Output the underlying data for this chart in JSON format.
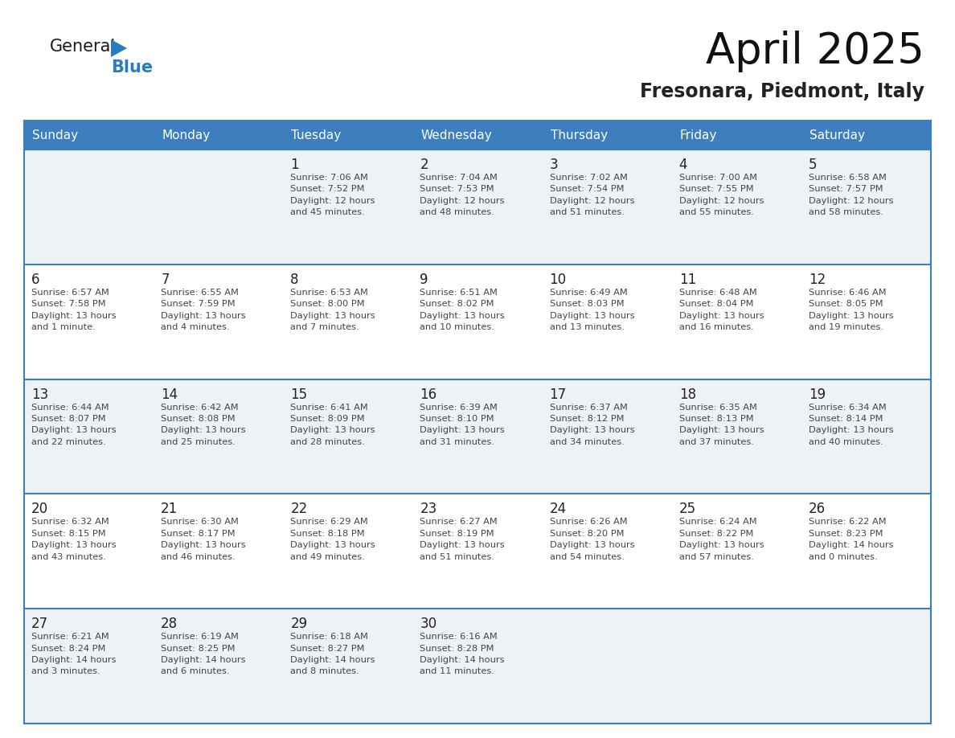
{
  "title": "April 2025",
  "subtitle": "Fresonara, Piedmont, Italy",
  "days_of_week": [
    "Sunday",
    "Monday",
    "Tuesday",
    "Wednesday",
    "Thursday",
    "Friday",
    "Saturday"
  ],
  "header_bg": "#3d7ebf",
  "header_fg": "#ffffff",
  "row_bg_odd": "#eef1f5",
  "row_bg_even": "#ffffff",
  "row_line_color": "#3d7ebf",
  "day_number_color": "#222222",
  "text_color": "#444444",
  "calendar": [
    [
      {
        "day": "",
        "info": ""
      },
      {
        "day": "",
        "info": ""
      },
      {
        "day": "1",
        "info": "Sunrise: 7:06 AM\nSunset: 7:52 PM\nDaylight: 12 hours\nand 45 minutes."
      },
      {
        "day": "2",
        "info": "Sunrise: 7:04 AM\nSunset: 7:53 PM\nDaylight: 12 hours\nand 48 minutes."
      },
      {
        "day": "3",
        "info": "Sunrise: 7:02 AM\nSunset: 7:54 PM\nDaylight: 12 hours\nand 51 minutes."
      },
      {
        "day": "4",
        "info": "Sunrise: 7:00 AM\nSunset: 7:55 PM\nDaylight: 12 hours\nand 55 minutes."
      },
      {
        "day": "5",
        "info": "Sunrise: 6:58 AM\nSunset: 7:57 PM\nDaylight: 12 hours\nand 58 minutes."
      }
    ],
    [
      {
        "day": "6",
        "info": "Sunrise: 6:57 AM\nSunset: 7:58 PM\nDaylight: 13 hours\nand 1 minute."
      },
      {
        "day": "7",
        "info": "Sunrise: 6:55 AM\nSunset: 7:59 PM\nDaylight: 13 hours\nand 4 minutes."
      },
      {
        "day": "8",
        "info": "Sunrise: 6:53 AM\nSunset: 8:00 PM\nDaylight: 13 hours\nand 7 minutes."
      },
      {
        "day": "9",
        "info": "Sunrise: 6:51 AM\nSunset: 8:02 PM\nDaylight: 13 hours\nand 10 minutes."
      },
      {
        "day": "10",
        "info": "Sunrise: 6:49 AM\nSunset: 8:03 PM\nDaylight: 13 hours\nand 13 minutes."
      },
      {
        "day": "11",
        "info": "Sunrise: 6:48 AM\nSunset: 8:04 PM\nDaylight: 13 hours\nand 16 minutes."
      },
      {
        "day": "12",
        "info": "Sunrise: 6:46 AM\nSunset: 8:05 PM\nDaylight: 13 hours\nand 19 minutes."
      }
    ],
    [
      {
        "day": "13",
        "info": "Sunrise: 6:44 AM\nSunset: 8:07 PM\nDaylight: 13 hours\nand 22 minutes."
      },
      {
        "day": "14",
        "info": "Sunrise: 6:42 AM\nSunset: 8:08 PM\nDaylight: 13 hours\nand 25 minutes."
      },
      {
        "day": "15",
        "info": "Sunrise: 6:41 AM\nSunset: 8:09 PM\nDaylight: 13 hours\nand 28 minutes."
      },
      {
        "day": "16",
        "info": "Sunrise: 6:39 AM\nSunset: 8:10 PM\nDaylight: 13 hours\nand 31 minutes."
      },
      {
        "day": "17",
        "info": "Sunrise: 6:37 AM\nSunset: 8:12 PM\nDaylight: 13 hours\nand 34 minutes."
      },
      {
        "day": "18",
        "info": "Sunrise: 6:35 AM\nSunset: 8:13 PM\nDaylight: 13 hours\nand 37 minutes."
      },
      {
        "day": "19",
        "info": "Sunrise: 6:34 AM\nSunset: 8:14 PM\nDaylight: 13 hours\nand 40 minutes."
      }
    ],
    [
      {
        "day": "20",
        "info": "Sunrise: 6:32 AM\nSunset: 8:15 PM\nDaylight: 13 hours\nand 43 minutes."
      },
      {
        "day": "21",
        "info": "Sunrise: 6:30 AM\nSunset: 8:17 PM\nDaylight: 13 hours\nand 46 minutes."
      },
      {
        "day": "22",
        "info": "Sunrise: 6:29 AM\nSunset: 8:18 PM\nDaylight: 13 hours\nand 49 minutes."
      },
      {
        "day": "23",
        "info": "Sunrise: 6:27 AM\nSunset: 8:19 PM\nDaylight: 13 hours\nand 51 minutes."
      },
      {
        "day": "24",
        "info": "Sunrise: 6:26 AM\nSunset: 8:20 PM\nDaylight: 13 hours\nand 54 minutes."
      },
      {
        "day": "25",
        "info": "Sunrise: 6:24 AM\nSunset: 8:22 PM\nDaylight: 13 hours\nand 57 minutes."
      },
      {
        "day": "26",
        "info": "Sunrise: 6:22 AM\nSunset: 8:23 PM\nDaylight: 14 hours\nand 0 minutes."
      }
    ],
    [
      {
        "day": "27",
        "info": "Sunrise: 6:21 AM\nSunset: 8:24 PM\nDaylight: 14 hours\nand 3 minutes."
      },
      {
        "day": "28",
        "info": "Sunrise: 6:19 AM\nSunset: 8:25 PM\nDaylight: 14 hours\nand 6 minutes."
      },
      {
        "day": "29",
        "info": "Sunrise: 6:18 AM\nSunset: 8:27 PM\nDaylight: 14 hours\nand 8 minutes."
      },
      {
        "day": "30",
        "info": "Sunrise: 6:16 AM\nSunset: 8:28 PM\nDaylight: 14 hours\nand 11 minutes."
      },
      {
        "day": "",
        "info": ""
      },
      {
        "day": "",
        "info": ""
      },
      {
        "day": "",
        "info": ""
      }
    ]
  ],
  "logo_color_general": "#1a1a1a",
  "logo_color_blue": "#2b7bbf",
  "logo_triangle_color": "#2b7bbf",
  "title_color": "#111111",
  "subtitle_color": "#222222"
}
